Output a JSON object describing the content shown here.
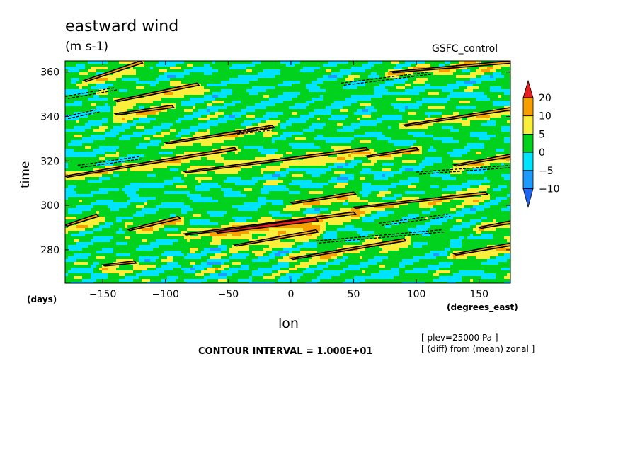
{
  "chart_data": {
    "type": "heatmap",
    "title": "eastward wind",
    "units": "(m s-1)",
    "experiment": "GSFC_control",
    "xlabel": "lon",
    "xunit": "(degrees_east)",
    "ylabel": "time",
    "yunit": "(days)",
    "xlim": [
      -180,
      175
    ],
    "ylim": [
      265,
      365
    ],
    "xticks": [
      -150,
      -100,
      -50,
      0,
      50,
      100,
      150
    ],
    "xtick_labels": [
      "−150",
      "−100",
      "−50",
      "0",
      "50",
      "100",
      "150"
    ],
    "yticks": [
      280,
      300,
      320,
      340,
      360
    ],
    "ytick_labels": [
      "280",
      "300",
      "320",
      "340",
      "360"
    ],
    "colorbar": {
      "levels": [
        -10,
        -5,
        0,
        5,
        10,
        20
      ],
      "labels": [
        "−10",
        "−5",
        "0",
        "5",
        "10",
        "20"
      ],
      "colors": [
        "#1e64f0",
        "#1e9bff",
        "#00e3ff",
        "#00d21e",
        "#faf03c",
        "#f5a000",
        "#e61e1e"
      ]
    },
    "contour_interval": "CONTOUR INTERVAL = 1.000E+01",
    "notes": [
      "[ plev=25000 Pa ]",
      "[ (diff) from (mean) zonal ]"
    ],
    "contour_bands": [
      {
        "t0": 356,
        "lon0": -165,
        "t1": 364,
        "lon1": -120,
        "level": 10
      },
      {
        "t0": 347,
        "lon0": -140,
        "t1": 354,
        "lon1": -75,
        "level": 10
      },
      {
        "t0": 341,
        "lon0": -140,
        "t1": 344,
        "lon1": -95,
        "level": 10
      },
      {
        "t0": 328,
        "lon0": -100,
        "t1": 335,
        "lon1": -15,
        "level": 10
      },
      {
        "t0": 313,
        "lon0": -180,
        "t1": 325,
        "lon1": -45,
        "level": 10
      },
      {
        "t0": 315,
        "lon0": -85,
        "t1": 325,
        "lon1": 60,
        "level": 10
      },
      {
        "t0": 301,
        "lon0": 0,
        "t1": 305,
        "lon1": 50,
        "level": 10
      },
      {
        "t0": 299,
        "lon0": 50,
        "t1": 305,
        "lon1": 155,
        "level": 10
      },
      {
        "t0": 287,
        "lon0": -85,
        "t1": 296,
        "lon1": 50,
        "level": 10
      },
      {
        "t0": 288,
        "lon0": -60,
        "t1": 293,
        "lon1": 20,
        "level": 20
      },
      {
        "t0": 282,
        "lon0": -45,
        "t1": 288,
        "lon1": 20,
        "level": 10
      },
      {
        "t0": 276,
        "lon0": 0,
        "t1": 284,
        "lon1": 90,
        "level": 10
      },
      {
        "t0": 291,
        "lon0": -180,
        "t1": 295,
        "lon1": -155,
        "level": 10
      },
      {
        "t0": 289,
        "lon0": -130,
        "t1": 294,
        "lon1": -90,
        "level": 10
      },
      {
        "t0": 278,
        "lon0": 130,
        "t1": 282,
        "lon1": 175,
        "level": 10
      },
      {
        "t0": 318,
        "lon0": 130,
        "t1": 322,
        "lon1": 175,
        "level": 10
      },
      {
        "t0": 336,
        "lon0": 90,
        "t1": 343,
        "lon1": 175,
        "level": 10
      },
      {
        "t0": 360,
        "lon0": 80,
        "t1": 364,
        "lon1": 175,
        "level": 10
      },
      {
        "t0": 273,
        "lon0": -150,
        "t1": 274,
        "lon1": -125,
        "level": 10
      },
      {
        "t0": 322,
        "lon0": 60,
        "t1": 325,
        "lon1": 100,
        "level": 10
      },
      {
        "t0": 290,
        "lon0": 150,
        "t1": 292,
        "lon1": 175,
        "level": 10
      }
    ],
    "dashed_bands": [
      {
        "t0": 349,
        "lon0": -180,
        "t1": 353,
        "lon1": -140,
        "level": -10
      },
      {
        "t0": 318,
        "lon0": -170,
        "t1": 322,
        "lon1": -120,
        "level": -10
      },
      {
        "t0": 284,
        "lon0": 20,
        "t1": 289,
        "lon1": 120,
        "level": -10
      },
      {
        "t0": 315,
        "lon0": 100,
        "t1": 318,
        "lon1": 175,
        "level": -10
      },
      {
        "t0": 355,
        "lon0": 40,
        "t1": 360,
        "lon1": 110,
        "level": -10
      },
      {
        "t0": 340,
        "lon0": -180,
        "t1": 343,
        "lon1": -155,
        "level": -10
      },
      {
        "t0": 292,
        "lon0": 70,
        "t1": 296,
        "lon1": 125,
        "level": -10
      },
      {
        "t0": 333,
        "lon0": -45,
        "t1": 335,
        "lon1": -15,
        "level": -10
      }
    ]
  }
}
